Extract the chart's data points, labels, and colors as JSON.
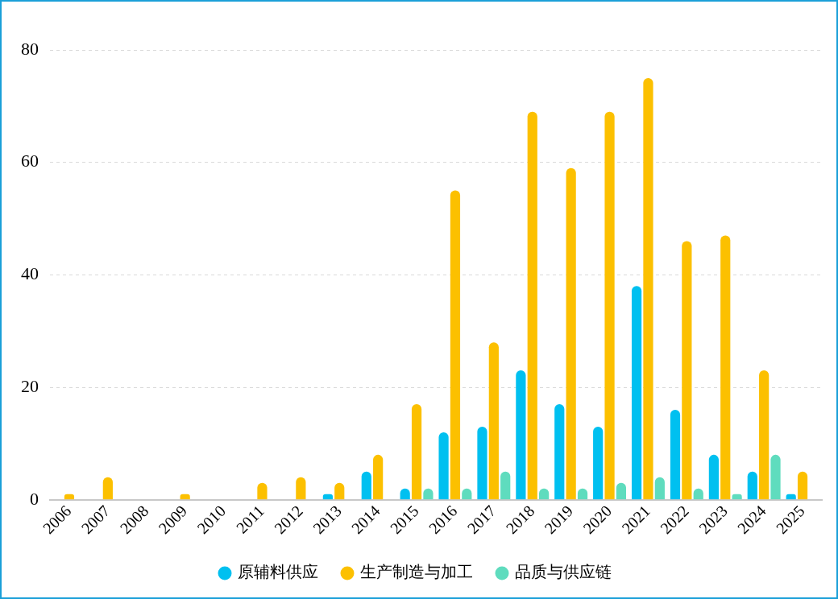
{
  "chart_data": {
    "type": "bar",
    "categories": [
      "2006",
      "2007",
      "2008",
      "2009",
      "2010",
      "2011",
      "2012",
      "2013",
      "2014",
      "2015",
      "2016",
      "2017",
      "2018",
      "2019",
      "2020",
      "2021",
      "2022",
      "2023",
      "2024",
      "2025"
    ],
    "series": [
      {
        "name": "原辅料供应",
        "color": "#00c0f0",
        "values": [
          0,
          0,
          0,
          0,
          0,
          0,
          0,
          1,
          5,
          2,
          12,
          13,
          23,
          17,
          13,
          38,
          16,
          8,
          5,
          1
        ]
      },
      {
        "name": "生产制造与加工",
        "color": "#fcc000",
        "values": [
          1,
          4,
          0,
          1,
          0,
          3,
          4,
          3,
          8,
          17,
          55,
          28,
          69,
          59,
          69,
          75,
          46,
          47,
          23,
          5
        ]
      },
      {
        "name": "品质与供应链",
        "color": "#5fdcbe",
        "values": [
          0,
          0,
          0,
          0,
          0,
          0,
          0,
          0,
          0,
          2,
          2,
          5,
          2,
          2,
          3,
          4,
          2,
          1,
          8,
          0
        ]
      }
    ],
    "ylim": [
      0,
      80
    ],
    "yticks": [
      0,
      20,
      40,
      60,
      80
    ],
    "grid": "y",
    "legend": "bottom"
  }
}
